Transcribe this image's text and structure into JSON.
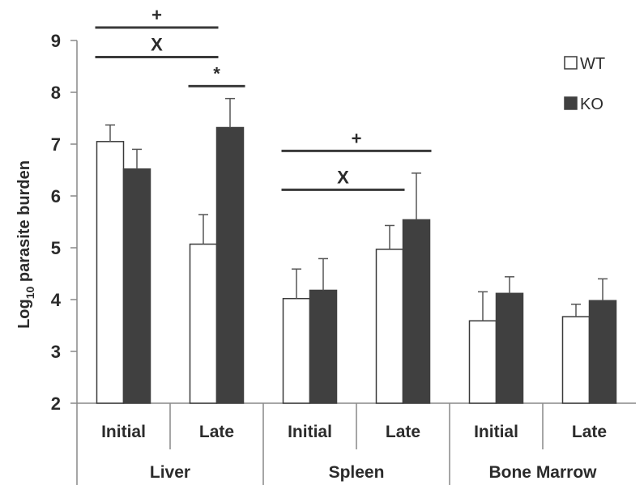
{
  "chart_data": {
    "type": "bar",
    "ylabel_main": "Log",
    "ylabel_sub": "10",
    "ylabel_rest": " parasite burden",
    "ylim": [
      2,
      9
    ],
    "yticks": [
      2,
      3,
      4,
      5,
      6,
      7,
      8,
      9
    ],
    "grid": false,
    "legend_position": "top-right",
    "groups": [
      {
        "label": "Liver",
        "categories": [
          "Initial",
          "Late"
        ]
      },
      {
        "label": "Spleen",
        "categories": [
          "Initial",
          "Late"
        ]
      },
      {
        "label": "Bone Marrow",
        "categories": [
          "Initial",
          "Late"
        ]
      }
    ],
    "series": [
      {
        "name": "WT",
        "color": "#ffffff",
        "stroke": "#3a3a3a",
        "values": [
          7.05,
          5.07,
          4.02,
          4.97,
          3.59,
          3.67
        ],
        "errors": [
          0.32,
          0.57,
          0.57,
          0.46,
          0.56,
          0.24
        ]
      },
      {
        "name": "KO",
        "color": "#404040",
        "stroke": "#404040",
        "values": [
          6.52,
          7.32,
          4.18,
          5.54,
          4.12,
          3.98
        ],
        "errors": [
          0.38,
          0.56,
          0.61,
          0.9,
          0.32,
          0.42
        ]
      }
    ],
    "annotations": [
      {
        "symbol": "+",
        "from": [
          0,
          0
        ],
        "to": [
          1,
          0
        ],
        "y": 9.25
      },
      {
        "symbol": "X",
        "from": [
          0,
          0
        ],
        "to": [
          1,
          0
        ],
        "y": 8.68
      },
      {
        "symbol": "*",
        "from": [
          1,
          0
        ],
        "to": [
          1,
          1
        ],
        "y": 8.12
      },
      {
        "symbol": "+",
        "from": [
          2,
          0
        ],
        "to": [
          3,
          1
        ],
        "y": 6.87
      },
      {
        "symbol": "X",
        "from": [
          2,
          0
        ],
        "to": [
          3,
          0
        ],
        "y": 6.12
      }
    ]
  }
}
